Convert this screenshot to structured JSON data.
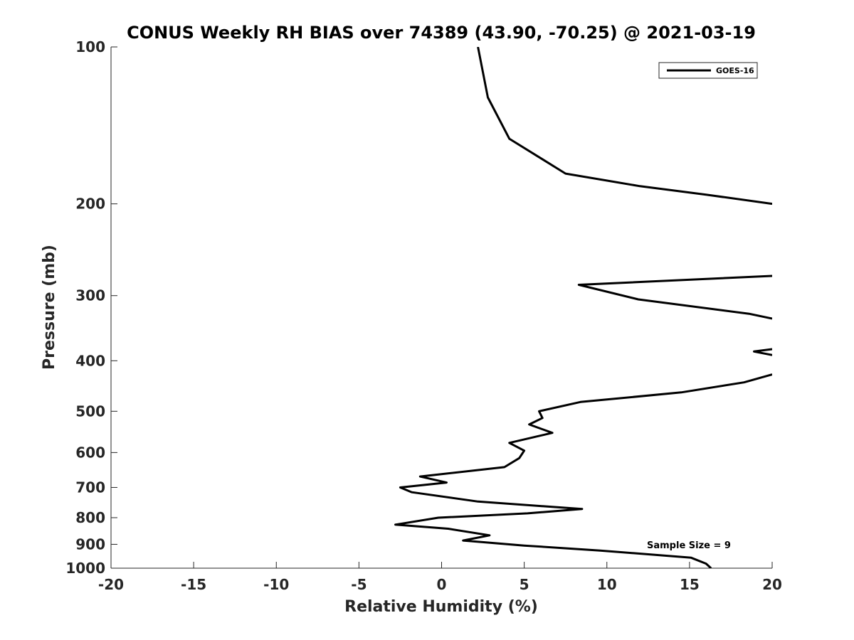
{
  "chart_data": {
    "type": "line",
    "title": "CONUS Weekly RH BIAS over 74389 (43.90, -70.25) @ 2021-03-19",
    "xlabel": "Relative Humidity (%)",
    "ylabel": "Pressure (mb)",
    "xlim": [
      -20,
      20
    ],
    "ylim": [
      100,
      1000
    ],
    "yscale": "log",
    "y_reversed": true,
    "xticks": [
      -20,
      -15,
      -10,
      -5,
      0,
      5,
      10,
      15,
      20
    ],
    "yticks": [
      100,
      200,
      300,
      400,
      500,
      600,
      700,
      800,
      900,
      1000
    ],
    "grid": false,
    "legend_position": "top-right",
    "annotation": "Sample Size = 9",
    "series": [
      {
        "name": "GOES-16",
        "color": "#000000",
        "points": [
          [
            2.2,
            100
          ],
          [
            2.8,
            125
          ],
          [
            4.1,
            150
          ],
          [
            7.5,
            175
          ],
          [
            12,
            185
          ],
          [
            16,
            192
          ],
          [
            20,
            200
          ],
          [
            null,
            null
          ],
          [
            20,
            275
          ],
          [
            8.3,
            286
          ],
          [
            11.9,
            305
          ],
          [
            18.6,
            325
          ],
          [
            20,
            332
          ],
          [
            null,
            null
          ],
          [
            20,
            380
          ],
          [
            18.9,
            384
          ],
          [
            20,
            390
          ],
          [
            null,
            null
          ],
          [
            20,
            425
          ],
          [
            18.3,
            440
          ],
          [
            14.5,
            460
          ],
          [
            8.4,
            480
          ],
          [
            5.9,
            500
          ],
          [
            6.1,
            515
          ],
          [
            5.3,
            530
          ],
          [
            6.7,
            550
          ],
          [
            4.1,
            575
          ],
          [
            5.0,
            595
          ],
          [
            4.7,
            615
          ],
          [
            3.8,
            640
          ],
          [
            -1.3,
            667
          ],
          [
            0.3,
            685
          ],
          [
            -2.5,
            700
          ],
          [
            -1.8,
            715
          ],
          [
            2.2,
            745
          ],
          [
            8.5,
            770
          ],
          [
            5.2,
            785
          ],
          [
            -0.2,
            800
          ],
          [
            -2.8,
            825
          ],
          [
            0.4,
            840
          ],
          [
            2.9,
            865
          ],
          [
            1.3,
            885
          ],
          [
            5.0,
            905
          ],
          [
            9.6,
            925
          ],
          [
            15.1,
            955
          ],
          [
            16.0,
            980
          ],
          [
            16.3,
            1000
          ]
        ]
      }
    ]
  }
}
